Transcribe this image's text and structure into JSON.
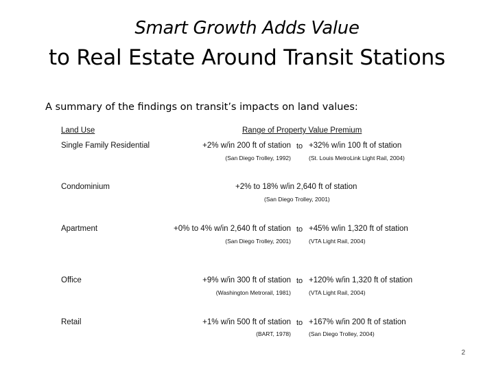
{
  "slide": {
    "title_line1": "Smart Growth Adds Value",
    "title_line2": "to Real Estate Around Transit Stations",
    "intro": "A summary of the findings on transit’s impacts on land values:",
    "page_number": "2"
  },
  "table": {
    "header_land_use": "Land Use",
    "header_range": "Range of Property Value Premium",
    "to_word": "to",
    "rows": [
      {
        "land_use": "Single Family Residential",
        "low": "+2% w/in 200 ft of station",
        "low_source": "(San Diego Trolley, 1992)",
        "high": "+32% w/in 100 ft of station",
        "high_source": "(St. Louis MetroLink Light Rail, 2004)"
      },
      {
        "land_use": "Condominium",
        "full": "+2% to 18% w/in 2,640 ft of station",
        "source": "(San Diego Trolley, 2001)"
      },
      {
        "land_use": "Apartment",
        "low": "+0% to 4% w/in 2,640 ft of station",
        "low_source": "(San Diego Trolley, 2001)",
        "high": "+45% w/in 1,320 ft of station",
        "high_source": "(VTA Light Rail, 2004)"
      },
      {
        "land_use": "Office",
        "low": "+9% w/in 300 ft of station",
        "low_source": "(Washington Metrorail, 1981)",
        "high": "+120% w/in 1,320 ft of station",
        "high_source": "(VTA Light Rail, 2004)"
      },
      {
        "land_use": "Retail",
        "low": "+1% w/in 500 ft of station",
        "low_source": "(BART, 1978)",
        "high": "+167% w/in 200 ft of station",
        "high_source": "(San Diego Trolley, 2004)"
      }
    ]
  }
}
